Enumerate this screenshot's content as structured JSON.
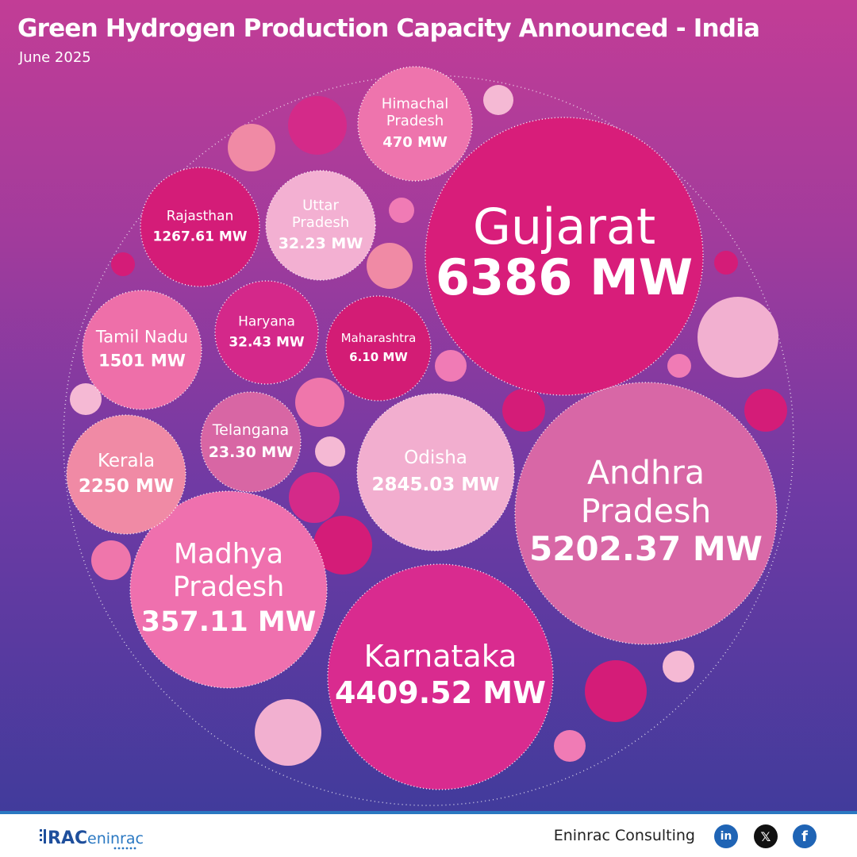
{
  "header": {
    "title": "Green Hydrogen Production Capacity Announced - India",
    "subtitle": "June 2025"
  },
  "chart_data": {
    "type": "bubble",
    "title": "Green Hydrogen Production Capacity Announced - India",
    "subtitle": "June 2025",
    "unit": "MW",
    "points": [
      {
        "name": "Gujarat",
        "value": 6386,
        "label": "6386 MW",
        "color": "#d81d7a"
      },
      {
        "name": "Andhra Pradesh",
        "value": 5202.37,
        "label": "5202.37 MW",
        "color": "#d867a6"
      },
      {
        "name": "Karnataka",
        "value": 4409.52,
        "label": "4409.52 MW",
        "color": "#d92b8f"
      },
      {
        "name": "Madhya Pradesh",
        "value": 357.11,
        "label": "357.11 MW",
        "color": "#ef70ae"
      },
      {
        "name": "Odisha",
        "value": 2845.03,
        "label": "2845.03 MW",
        "color": "#f2aecf"
      },
      {
        "name": "Kerala",
        "value": 2250,
        "label": "2250 MW",
        "color": "#f08aa5"
      },
      {
        "name": "Telangana",
        "value": 23.3,
        "label": "23.30 MW",
        "color": "#d866a4"
      },
      {
        "name": "Tamil Nadu",
        "value": 1501,
        "label": "1501 MW",
        "color": "#ee6fa9"
      },
      {
        "name": "Haryana",
        "value": 32.43,
        "label": "32.43 MW",
        "color": "#d4288a"
      },
      {
        "name": "Maharashtra",
        "value": 6.1,
        "label": "6.10 MW",
        "color": "#d31c75"
      },
      {
        "name": "Rajasthan",
        "value": 1267.61,
        "label": "1267.61 MW",
        "color": "#d41c78"
      },
      {
        "name": "Uttar Pradesh",
        "value": 32.23,
        "label": "32.23 MW",
        "color": "#f3b0d2"
      },
      {
        "name": "Himachal Pradesh",
        "value": 470,
        "label": "470 MW",
        "color": "#ee74ad"
      }
    ]
  },
  "footer": {
    "logo_text": "RAC eninrac",
    "company": "Eninrac Consulting",
    "icons": [
      "linkedin-icon",
      "x-icon",
      "facebook-icon"
    ]
  },
  "colors": {
    "background_top": "#c23d96",
    "background_bottom": "#3b3b9a",
    "footer_accent": "#2a78c2"
  }
}
